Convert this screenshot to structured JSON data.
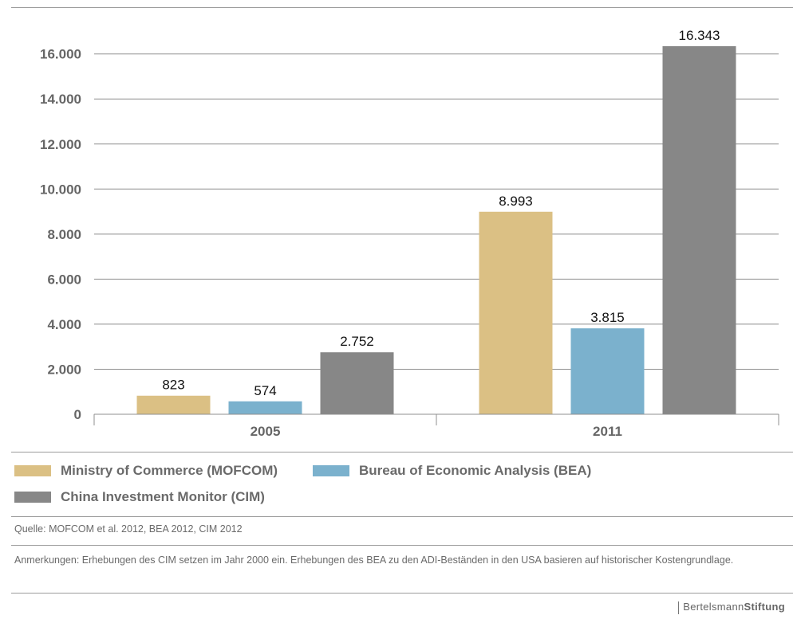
{
  "chart_data": {
    "type": "bar",
    "categories": [
      "2005",
      "2011"
    ],
    "series": [
      {
        "name": "Ministry of Commerce (MOFCOM)",
        "color": "#dbc084",
        "values": [
          823,
          8993
        ],
        "labels": [
          "823",
          "8.993"
        ]
      },
      {
        "name": "Bureau of Economic Analysis (BEA)",
        "color": "#7bb1cd",
        "values": [
          574,
          3815
        ],
        "labels": [
          "574",
          "3.815"
        ]
      },
      {
        "name": "China Investment Monitor (CIM)",
        "color": "#878787",
        "values": [
          2752,
          16343
        ],
        "labels": [
          "2.752",
          "16.343"
        ]
      }
    ],
    "yticks": [
      0,
      2000,
      4000,
      6000,
      8000,
      10000,
      12000,
      14000,
      16000
    ],
    "ytick_labels": [
      "0",
      "2.000",
      "4.000",
      "6.000",
      "8.000",
      "10.000",
      "12.000",
      "14.000",
      "16.000"
    ],
    "ylim": [
      0,
      16343
    ],
    "grid": true,
    "legend_position": "bottom"
  },
  "source": "Quelle: MOFCOM et al. 2012, BEA 2012, CIM 2012",
  "notes": "Anmerkungen: Erhebungen des CIM setzen im Jahr 2000 ein. Erhebungen des BEA zu den ADI-Beständen in den USA basieren auf historischer Kostengrundlage.",
  "brand": {
    "part1": "Bertelsmann",
    "part2": "Stiftung"
  }
}
